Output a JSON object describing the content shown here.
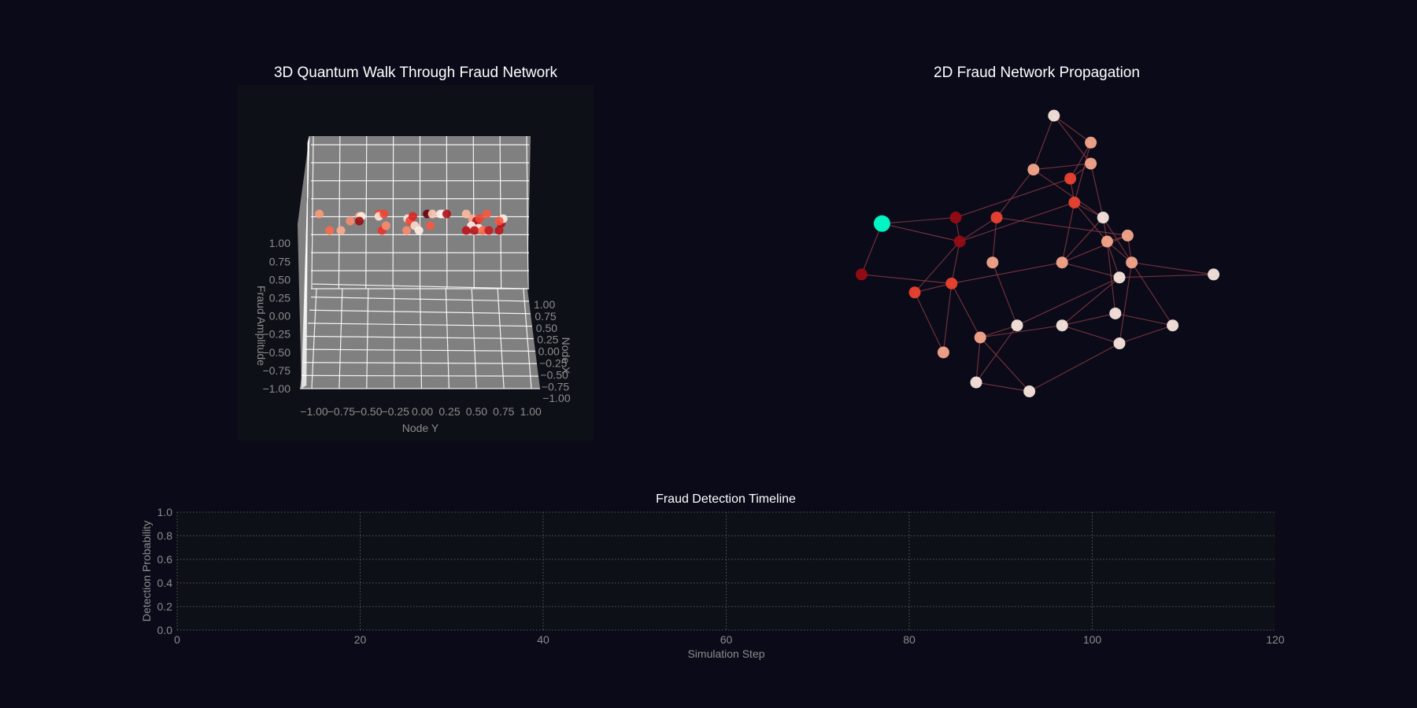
{
  "colors": {
    "background": "#0a0a18",
    "panel_bg": "#0d1017",
    "pane": "#808080",
    "grid_white": "#ffffff",
    "edge": "#8a3a44",
    "start_node": "#00f5c4",
    "tick_text": "#8c8c8c",
    "title_text": "#ffffff"
  },
  "chart_data": [
    {
      "id": "quantum-walk-3d",
      "type": "scatter",
      "title": "3D Quantum Walk Through Fraud Network",
      "xlabel": "Node X",
      "ylabel": "Node Y",
      "zlabel": "Fraud Amplitude",
      "xlim": [
        -1,
        1
      ],
      "ylim": [
        -1,
        1
      ],
      "zlim": [
        -1,
        1
      ],
      "x_ticks": [
        "−1.00",
        "−0.75",
        "−0.50",
        "−0.25",
        "0.00",
        "0.25",
        "0.50",
        "0.75",
        "1.00"
      ],
      "y_ticks": [
        "−1.00",
        "−0.75",
        "−0.50",
        "−0.25",
        "0.00",
        "0.25",
        "0.50",
        "0.75",
        "1.00"
      ],
      "z_ticks": [
        "−1.00",
        "−0.75",
        "−0.50",
        "−0.25",
        "0.00",
        "0.25",
        "0.50",
        "0.75",
        "1.00"
      ],
      "grid": true,
      "colormap": "Reds",
      "points": [
        {
          "y": -0.98,
          "z": 1.4,
          "c": 0.35
        },
        {
          "y": -0.88,
          "z": 1.33,
          "c": 0.5
        },
        {
          "y": -0.77,
          "z": 1.33,
          "c": 0.3
        },
        {
          "y": -0.68,
          "z": 1.37,
          "c": 0.4
        },
        {
          "y": -0.59,
          "z": 1.39,
          "c": 0.3
        },
        {
          "y": -0.57,
          "z": 1.39,
          "c": 0.05
        },
        {
          "y": -0.59,
          "z": 1.37,
          "c": 0.9
        },
        {
          "y": -0.4,
          "z": 1.4,
          "c": 0.6
        },
        {
          "y": -0.4,
          "z": 1.39,
          "c": 0.1
        },
        {
          "y": -0.35,
          "z": 1.4,
          "c": 0.6
        },
        {
          "y": -0.37,
          "z": 1.33,
          "c": 0.65
        },
        {
          "y": -0.33,
          "z": 1.35,
          "c": 0.4
        },
        {
          "y": -0.12,
          "z": 1.38,
          "c": 0.1
        },
        {
          "y": -0.1,
          "z": 1.37,
          "c": 0.6
        },
        {
          "y": -0.07,
          "z": 1.39,
          "c": 0.7
        },
        {
          "y": -0.13,
          "z": 1.33,
          "c": 0.4
        },
        {
          "y": -0.05,
          "z": 1.35,
          "c": 0.15
        },
        {
          "y": -0.01,
          "z": 1.33,
          "c": 0.05
        },
        {
          "y": 0.07,
          "z": 1.4,
          "c": 1.0
        },
        {
          "y": 0.12,
          "z": 1.4,
          "c": 0.2
        },
        {
          "y": 0.1,
          "z": 1.35,
          "c": 0.55
        },
        {
          "y": 0.2,
          "z": 1.4,
          "c": 0.03
        },
        {
          "y": 0.23,
          "z": 1.4,
          "c": 0.0
        },
        {
          "y": 0.26,
          "z": 1.4,
          "c": 0.85
        },
        {
          "y": 0.45,
          "z": 1.4,
          "c": 0.25
        },
        {
          "y": 0.51,
          "z": 1.38,
          "c": 0.3
        },
        {
          "y": 0.55,
          "z": 1.37,
          "c": 0.85
        },
        {
          "y": 0.58,
          "z": 1.38,
          "c": 0.6
        },
        {
          "y": 0.65,
          "z": 1.4,
          "c": 0.55
        },
        {
          "y": 0.5,
          "z": 1.35,
          "c": 0.05
        },
        {
          "y": 0.57,
          "z": 1.34,
          "c": 0.05
        },
        {
          "y": 0.45,
          "z": 1.33,
          "c": 0.8
        },
        {
          "y": 0.53,
          "z": 1.33,
          "c": 0.8
        },
        {
          "y": 0.61,
          "z": 1.33,
          "c": 0.5
        },
        {
          "y": 0.67,
          "z": 1.33,
          "c": 0.75
        },
        {
          "y": 0.77,
          "z": 1.33,
          "c": 0.8
        },
        {
          "y": 0.79,
          "z": 1.36,
          "c": 0.85
        },
        {
          "y": 0.81,
          "z": 1.38,
          "c": 0.05
        },
        {
          "y": 0.77,
          "z": 1.37,
          "c": 0.55
        }
      ]
    },
    {
      "id": "fraud-network-2d",
      "type": "scatter",
      "title": "2D Fraud Network Propagation",
      "nodes": [
        {
          "id": 0,
          "x": 0.12,
          "y": 0.64,
          "c": 0.0,
          "start": true
        },
        {
          "id": 1,
          "x": 0.07,
          "y": 0.47,
          "c": 0.9
        },
        {
          "id": 2,
          "x": 0.3,
          "y": 0.66,
          "c": 0.9
        },
        {
          "id": 3,
          "x": 0.31,
          "y": 0.58,
          "c": 0.9
        },
        {
          "id": 4,
          "x": 0.4,
          "y": 0.66,
          "c": 0.6
        },
        {
          "id": 5,
          "x": 0.49,
          "y": 0.82,
          "c": 0.3
        },
        {
          "id": 6,
          "x": 0.54,
          "y": 1.0,
          "c": 0.05
        },
        {
          "id": 7,
          "x": 0.63,
          "y": 0.91,
          "c": 0.3
        },
        {
          "id": 8,
          "x": 0.63,
          "y": 0.84,
          "c": 0.3
        },
        {
          "id": 9,
          "x": 0.58,
          "y": 0.79,
          "c": 0.6
        },
        {
          "id": 10,
          "x": 0.59,
          "y": 0.71,
          "c": 0.6
        },
        {
          "id": 11,
          "x": 0.66,
          "y": 0.66,
          "c": 0.05
        },
        {
          "id": 12,
          "x": 0.67,
          "y": 0.58,
          "c": 0.3
        },
        {
          "id": 13,
          "x": 0.72,
          "y": 0.6,
          "c": 0.3
        },
        {
          "id": 14,
          "x": 0.73,
          "y": 0.51,
          "c": 0.3
        },
        {
          "id": 15,
          "x": 0.7,
          "y": 0.46,
          "c": 0.05
        },
        {
          "id": 16,
          "x": 0.93,
          "y": 0.47,
          "c": 0.05
        },
        {
          "id": 17,
          "x": 0.39,
          "y": 0.51,
          "c": 0.3
        },
        {
          "id": 18,
          "x": 0.56,
          "y": 0.51,
          "c": 0.3
        },
        {
          "id": 19,
          "x": 0.29,
          "y": 0.44,
          "c": 0.6
        },
        {
          "id": 20,
          "x": 0.2,
          "y": 0.41,
          "c": 0.6
        },
        {
          "id": 21,
          "x": 0.45,
          "y": 0.3,
          "c": 0.05
        },
        {
          "id": 22,
          "x": 0.36,
          "y": 0.26,
          "c": 0.3
        },
        {
          "id": 23,
          "x": 0.27,
          "y": 0.21,
          "c": 0.3
        },
        {
          "id": 24,
          "x": 0.35,
          "y": 0.11,
          "c": 0.05
        },
        {
          "id": 25,
          "x": 0.48,
          "y": 0.08,
          "c": 0.05
        },
        {
          "id": 26,
          "x": 0.56,
          "y": 0.3,
          "c": 0.05
        },
        {
          "id": 27,
          "x": 0.69,
          "y": 0.34,
          "c": 0.05
        },
        {
          "id": 28,
          "x": 0.83,
          "y": 0.3,
          "c": 0.05
        },
        {
          "id": 29,
          "x": 0.7,
          "y": 0.24,
          "c": 0.05
        }
      ],
      "edges": [
        [
          0,
          1
        ],
        [
          0,
          2
        ],
        [
          0,
          3
        ],
        [
          1,
          19
        ],
        [
          2,
          3
        ],
        [
          2,
          9
        ],
        [
          3,
          4
        ],
        [
          3,
          10
        ],
        [
          3,
          20
        ],
        [
          3,
          19
        ],
        [
          4,
          5
        ],
        [
          4,
          17
        ],
        [
          4,
          13
        ],
        [
          5,
          6
        ],
        [
          5,
          8
        ],
        [
          5,
          11
        ],
        [
          6,
          7
        ],
        [
          6,
          8
        ],
        [
          7,
          9
        ],
        [
          7,
          10
        ],
        [
          8,
          9
        ],
        [
          8,
          11
        ],
        [
          9,
          10
        ],
        [
          10,
          18
        ],
        [
          10,
          11
        ],
        [
          10,
          12
        ],
        [
          11,
          12
        ],
        [
          11,
          14
        ],
        [
          11,
          18
        ],
        [
          12,
          14
        ],
        [
          12,
          15
        ],
        [
          12,
          27
        ],
        [
          12,
          13
        ],
        [
          13,
          14
        ],
        [
          13,
          18
        ],
        [
          14,
          16
        ],
        [
          14,
          28
        ],
        [
          14,
          29
        ],
        [
          15,
          16
        ],
        [
          15,
          18
        ],
        [
          15,
          21
        ],
        [
          15,
          26
        ],
        [
          17,
          21
        ],
        [
          18,
          19
        ],
        [
          19,
          20
        ],
        [
          19,
          23
        ],
        [
          19,
          22
        ],
        [
          20,
          23
        ],
        [
          21,
          22
        ],
        [
          21,
          24
        ],
        [
          22,
          24
        ],
        [
          22,
          26
        ],
        [
          22,
          25
        ],
        [
          24,
          25
        ],
        [
          25,
          29
        ],
        [
          26,
          27
        ],
        [
          26,
          29
        ],
        [
          27,
          28
        ],
        [
          28,
          29
        ]
      ]
    },
    {
      "id": "fraud-detection-timeline",
      "type": "line",
      "title": "Fraud Detection Timeline",
      "xlabel": "Simulation Step",
      "ylabel": "Detection Probability",
      "xlim": [
        0,
        120
      ],
      "ylim": [
        0,
        1
      ],
      "x_ticks": [
        "0",
        "20",
        "40",
        "60",
        "80",
        "100",
        "120"
      ],
      "y_ticks": [
        "0.0",
        "0.2",
        "0.4",
        "0.6",
        "0.8",
        "1.0"
      ],
      "grid": true,
      "series": []
    }
  ]
}
